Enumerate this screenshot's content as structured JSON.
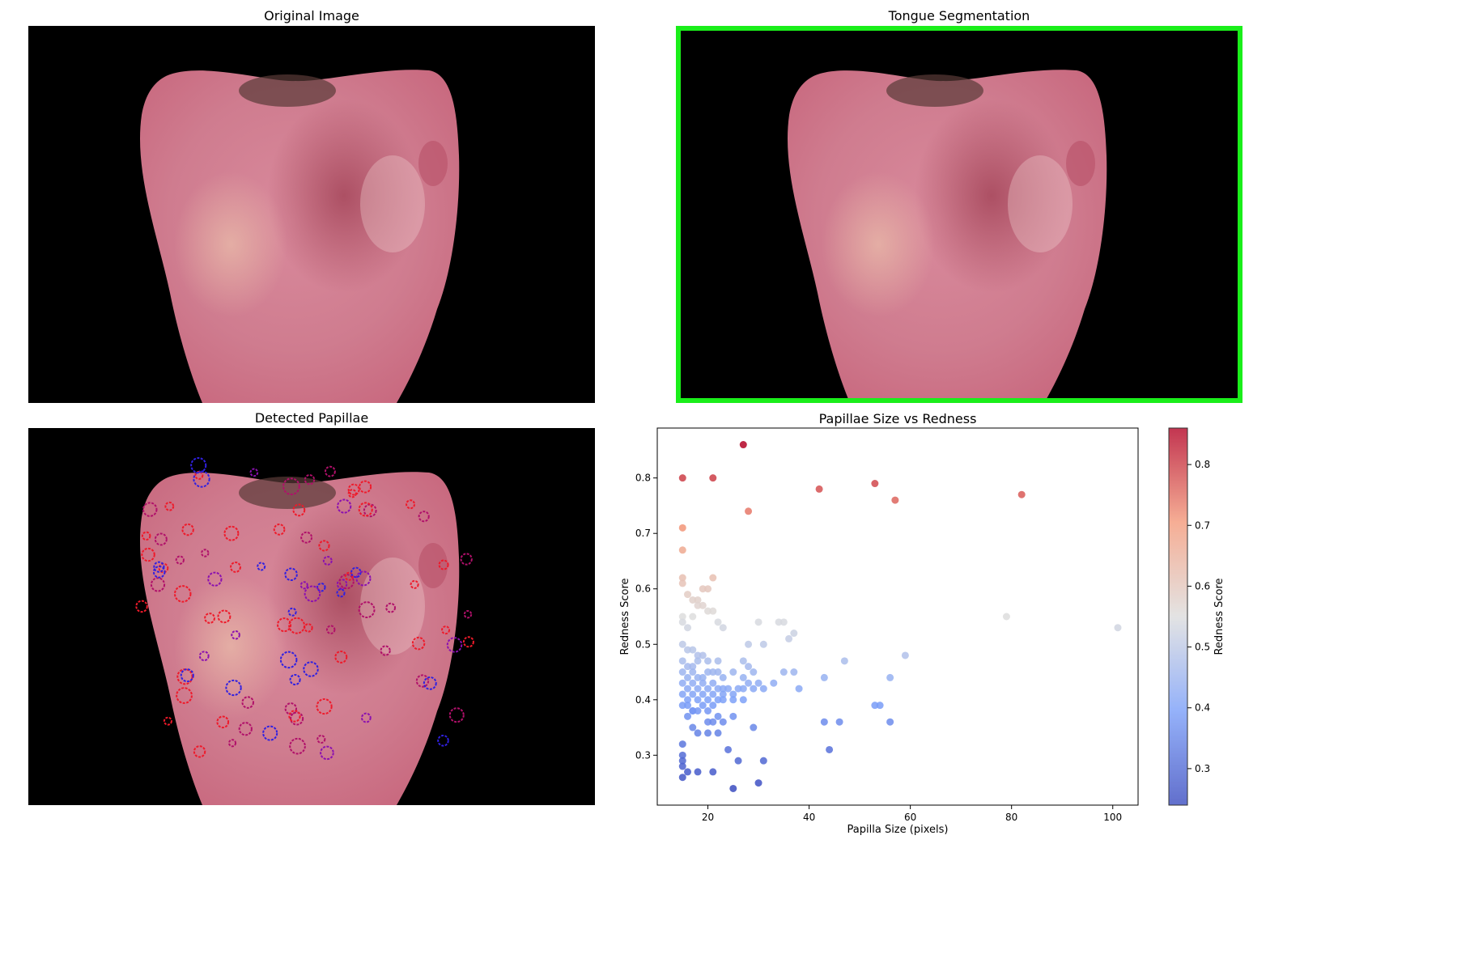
{
  "panels": {
    "original": {
      "title": "Original Image"
    },
    "segmentation": {
      "title": "Tongue Segmentation"
    },
    "papillae": {
      "title": "Detected Papillae"
    }
  },
  "colors": {
    "segmentation_outline": "#1aee1a",
    "tongue_base": "#d98a9c",
    "tongue_dark": "#b9566c",
    "background": "#000000"
  },
  "chart_data": {
    "type": "scatter",
    "title": "Papillae Size vs Redness",
    "xlabel": "Papilla Size (pixels)",
    "ylabel": "Redness Score",
    "colorbar_label": "Redness Score",
    "colormap": "coolwarm",
    "xlim": [
      10,
      105
    ],
    "ylim": [
      0.21,
      0.89
    ],
    "color_range": [
      0.24,
      0.86
    ],
    "xticks": [
      20,
      40,
      60,
      80,
      100
    ],
    "yticks": [
      0.3,
      0.4,
      0.5,
      0.6,
      0.7,
      0.8
    ],
    "cbar_ticks": [
      0.3,
      0.4,
      0.5,
      0.6,
      0.7,
      0.8
    ],
    "points": [
      [
        27,
        0.86
      ],
      [
        15,
        0.8
      ],
      [
        21,
        0.8
      ],
      [
        42,
        0.78
      ],
      [
        53,
        0.79
      ],
      [
        57,
        0.76
      ],
      [
        82,
        0.77
      ],
      [
        28,
        0.74
      ],
      [
        15,
        0.71
      ],
      [
        15,
        0.67
      ],
      [
        15,
        0.62
      ],
      [
        21,
        0.62
      ],
      [
        15,
        0.61
      ],
      [
        19,
        0.6
      ],
      [
        20,
        0.6
      ],
      [
        16,
        0.59
      ],
      [
        17,
        0.58
      ],
      [
        18,
        0.58
      ],
      [
        18,
        0.57
      ],
      [
        19,
        0.57
      ],
      [
        20,
        0.56
      ],
      [
        21,
        0.56
      ],
      [
        22,
        0.54
      ],
      [
        15,
        0.55
      ],
      [
        15,
        0.54
      ],
      [
        17,
        0.55
      ],
      [
        16,
        0.53
      ],
      [
        23,
        0.53
      ],
      [
        30,
        0.54
      ],
      [
        34,
        0.54
      ],
      [
        35,
        0.54
      ],
      [
        79,
        0.55
      ],
      [
        101,
        0.53
      ],
      [
        37,
        0.52
      ],
      [
        36,
        0.51
      ],
      [
        15,
        0.5
      ],
      [
        16,
        0.49
      ],
      [
        17,
        0.49
      ],
      [
        18,
        0.48
      ],
      [
        19,
        0.48
      ],
      [
        15,
        0.47
      ],
      [
        16,
        0.46
      ],
      [
        17,
        0.46
      ],
      [
        18,
        0.47
      ],
      [
        20,
        0.47
      ],
      [
        22,
        0.47
      ],
      [
        28,
        0.5
      ],
      [
        31,
        0.5
      ],
      [
        47,
        0.47
      ],
      [
        59,
        0.48
      ],
      [
        27,
        0.47
      ],
      [
        28,
        0.46
      ],
      [
        15,
        0.45
      ],
      [
        16,
        0.44
      ],
      [
        17,
        0.45
      ],
      [
        18,
        0.44
      ],
      [
        19,
        0.44
      ],
      [
        20,
        0.45
      ],
      [
        21,
        0.45
      ],
      [
        22,
        0.45
      ],
      [
        23,
        0.44
      ],
      [
        25,
        0.45
      ],
      [
        27,
        0.44
      ],
      [
        29,
        0.45
      ],
      [
        35,
        0.45
      ],
      [
        37,
        0.45
      ],
      [
        15,
        0.43
      ],
      [
        16,
        0.42
      ],
      [
        17,
        0.43
      ],
      [
        18,
        0.42
      ],
      [
        19,
        0.43
      ],
      [
        20,
        0.42
      ],
      [
        21,
        0.43
      ],
      [
        22,
        0.42
      ],
      [
        23,
        0.42
      ],
      [
        24,
        0.42
      ],
      [
        26,
        0.42
      ],
      [
        28,
        0.43
      ],
      [
        30,
        0.43
      ],
      [
        33,
        0.43
      ],
      [
        43,
        0.44
      ],
      [
        56,
        0.44
      ],
      [
        15,
        0.41
      ],
      [
        16,
        0.4
      ],
      [
        17,
        0.41
      ],
      [
        18,
        0.4
      ],
      [
        19,
        0.41
      ],
      [
        20,
        0.4
      ],
      [
        21,
        0.41
      ],
      [
        22,
        0.4
      ],
      [
        23,
        0.41
      ],
      [
        25,
        0.41
      ],
      [
        27,
        0.42
      ],
      [
        29,
        0.42
      ],
      [
        31,
        0.42
      ],
      [
        38,
        0.42
      ],
      [
        15,
        0.39
      ],
      [
        16,
        0.39
      ],
      [
        17,
        0.38
      ],
      [
        18,
        0.38
      ],
      [
        19,
        0.39
      ],
      [
        20,
        0.38
      ],
      [
        21,
        0.39
      ],
      [
        23,
        0.4
      ],
      [
        25,
        0.4
      ],
      [
        27,
        0.4
      ],
      [
        16,
        0.37
      ],
      [
        17,
        0.38
      ],
      [
        20,
        0.36
      ],
      [
        21,
        0.36
      ],
      [
        22,
        0.37
      ],
      [
        25,
        0.37
      ],
      [
        43,
        0.36
      ],
      [
        46,
        0.36
      ],
      [
        53,
        0.39
      ],
      [
        54,
        0.39
      ],
      [
        56,
        0.36
      ],
      [
        17,
        0.35
      ],
      [
        18,
        0.34
      ],
      [
        20,
        0.34
      ],
      [
        22,
        0.34
      ],
      [
        23,
        0.36
      ],
      [
        29,
        0.35
      ],
      [
        15,
        0.32
      ],
      [
        15,
        0.3
      ],
      [
        24,
        0.31
      ],
      [
        44,
        0.31
      ],
      [
        15,
        0.29
      ],
      [
        15,
        0.28
      ],
      [
        16,
        0.27
      ],
      [
        18,
        0.27
      ],
      [
        21,
        0.27
      ],
      [
        26,
        0.29
      ],
      [
        31,
        0.29
      ],
      [
        15,
        0.26
      ],
      [
        25,
        0.24
      ],
      [
        30,
        0.25
      ]
    ]
  }
}
